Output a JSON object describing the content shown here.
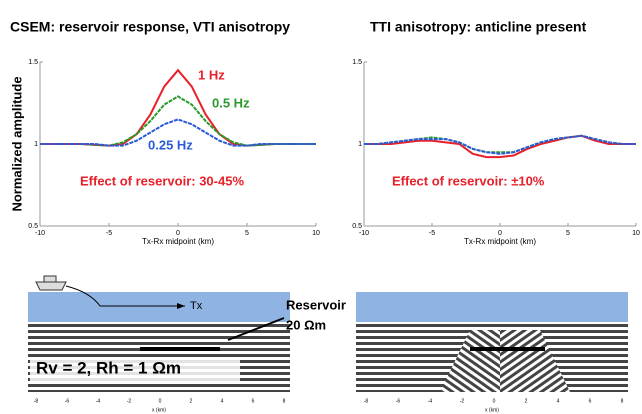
{
  "chart_data": [
    {
      "type": "line",
      "title": "CSEM: reservoir response,  VTI anisotropy",
      "ylabel": "Normalized amplitude",
      "xlabel": "Tx-Rx midpoint (km)",
      "xlim": [
        -10,
        10
      ],
      "xticks": [
        -10,
        -5,
        0,
        5,
        10
      ],
      "ylim": [
        0.5,
        1.5
      ],
      "yticks": [
        0.5,
        1,
        1.5
      ],
      "x": [
        -10,
        -9,
        -8,
        -7,
        -6,
        -5,
        -4,
        -3,
        -2,
        -1,
        0,
        1,
        2,
        3,
        4,
        5,
        6,
        7,
        8,
        9,
        10
      ],
      "series": [
        {
          "name": "1 Hz",
          "color": "#e8202a",
          "values": [
            1,
            1,
            1,
            1,
            0.995,
            0.99,
            1.0,
            1.06,
            1.18,
            1.35,
            1.45,
            1.35,
            1.18,
            1.06,
            1.0,
            0.99,
            0.995,
            1,
            1,
            1,
            1
          ]
        },
        {
          "name": "0.5 Hz",
          "color": "#2a9a2a",
          "values": [
            1,
            1,
            1,
            1,
            0.995,
            0.99,
            1.01,
            1.06,
            1.14,
            1.24,
            1.29,
            1.24,
            1.14,
            1.06,
            1.01,
            0.99,
            0.995,
            1,
            1,
            1,
            1
          ]
        },
        {
          "name": "0.25 Hz",
          "color": "#2a5ad8",
          "values": [
            1,
            1,
            1,
            1,
            1.0,
            0.99,
            0.99,
            1.02,
            1.07,
            1.12,
            1.15,
            1.12,
            1.07,
            1.02,
            0.99,
            0.99,
            1.0,
            1,
            1,
            1,
            1
          ]
        }
      ],
      "annotation": "Effect of reservoir: 30-45%"
    },
    {
      "type": "line",
      "title": "TTI anisotropy: anticline present",
      "xlabel": "Tx-Rx midpoint (km)",
      "xlim": [
        -10,
        10
      ],
      "xticks": [
        -10,
        -5,
        0,
        5,
        10
      ],
      "ylim": [
        0.5,
        1.5
      ],
      "yticks": [
        0.5,
        1,
        1.5
      ],
      "x": [
        -10,
        -9,
        -8,
        -7,
        -6,
        -5,
        -4,
        -3,
        -2,
        -1,
        0,
        1,
        2,
        3,
        4,
        5,
        6,
        7,
        8,
        9,
        10
      ],
      "series": [
        {
          "color": "#e8202a",
          "values": [
            1,
            1,
            1.0,
            1.01,
            1.02,
            1.02,
            1.01,
            1.0,
            0.94,
            0.92,
            0.92,
            0.93,
            0.97,
            1.0,
            1.02,
            1.04,
            1.05,
            1.02,
            1.0,
            1,
            1
          ]
        },
        {
          "color": "#2a9a2a",
          "values": [
            1,
            1,
            1.01,
            1.02,
            1.03,
            1.04,
            1.03,
            1.01,
            0.97,
            0.95,
            0.95,
            0.95,
            0.98,
            1.01,
            1.03,
            1.04,
            1.05,
            1.03,
            1.01,
            1,
            1
          ]
        },
        {
          "color": "#2a5ad8",
          "values": [
            1,
            1,
            1.01,
            1.02,
            1.03,
            1.03,
            1.03,
            1.01,
            0.97,
            0.95,
            0.94,
            0.95,
            0.98,
            1.01,
            1.03,
            1.04,
            1.05,
            1.03,
            1.01,
            1,
            1
          ]
        }
      ],
      "annotation": "Effect of reservoir: ±10%"
    }
  ],
  "diagrams": {
    "left": {
      "tx": "Tx",
      "reservoir": "Reservoir",
      "resistivity": "20 Ωm",
      "background": "Rv = 2,  Rh = 1 Ωm",
      "xlabel": "x (km)"
    },
    "right": {
      "xlabel": "x (km)"
    },
    "xticks": [
      "-8",
      "-6",
      "-4",
      "-2",
      "0",
      "2",
      "4",
      "6",
      "8"
    ]
  }
}
